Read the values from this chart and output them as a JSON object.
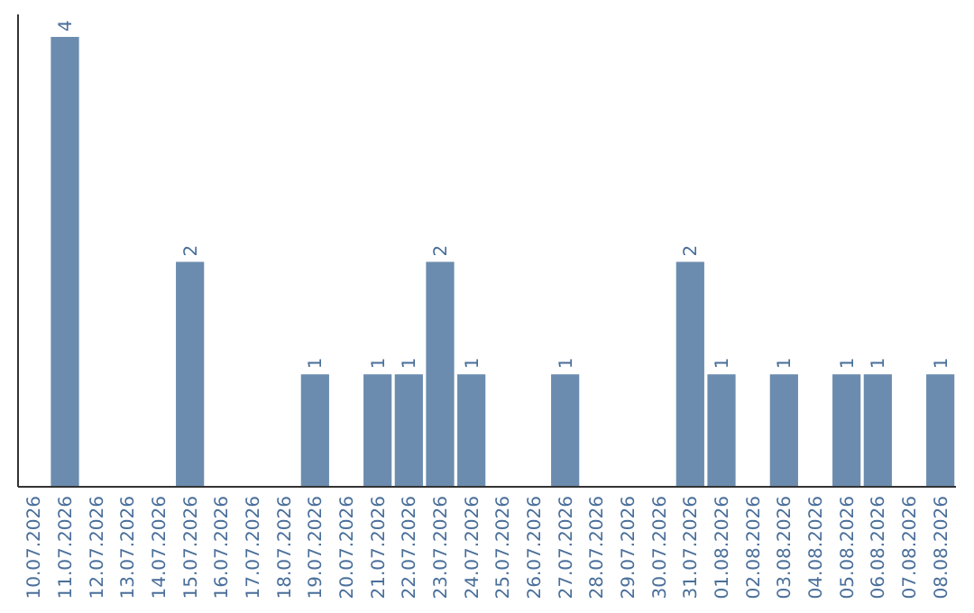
{
  "chart_data": {
    "type": "bar",
    "categories": [
      "10.07.2026",
      "11.07.2026",
      "12.07.2026",
      "13.07.2026",
      "14.07.2026",
      "15.07.2026",
      "16.07.2026",
      "17.07.2026",
      "18.07.2026",
      "19.07.2026",
      "20.07.2026",
      "21.07.2026",
      "22.07.2026",
      "23.07.2026",
      "24.07.2026",
      "25.07.2026",
      "26.07.2026",
      "27.07.2026",
      "28.07.2026",
      "29.07.2026",
      "30.07.2026",
      "31.07.2026",
      "01.08.2026",
      "02.08.2026",
      "03.08.2026",
      "04.08.2026",
      "05.08.2026",
      "06.08.2026",
      "07.08.2026",
      "08.08.2026"
    ],
    "values": [
      0,
      4,
      0,
      0,
      0,
      2,
      0,
      0,
      0,
      1,
      0,
      1,
      1,
      2,
      1,
      0,
      0,
      1,
      0,
      0,
      0,
      2,
      1,
      0,
      1,
      0,
      1,
      1,
      0,
      1
    ],
    "value_labels": [
      null,
      "4",
      null,
      null,
      null,
      "2",
      null,
      null,
      null,
      "1",
      null,
      "1",
      "1",
      "2",
      "1",
      null,
      null,
      "1",
      null,
      null,
      null,
      "2",
      "1",
      null,
      "1",
      null,
      "1",
      "1",
      null,
      "1"
    ],
    "color": "#6b8cae"
  }
}
